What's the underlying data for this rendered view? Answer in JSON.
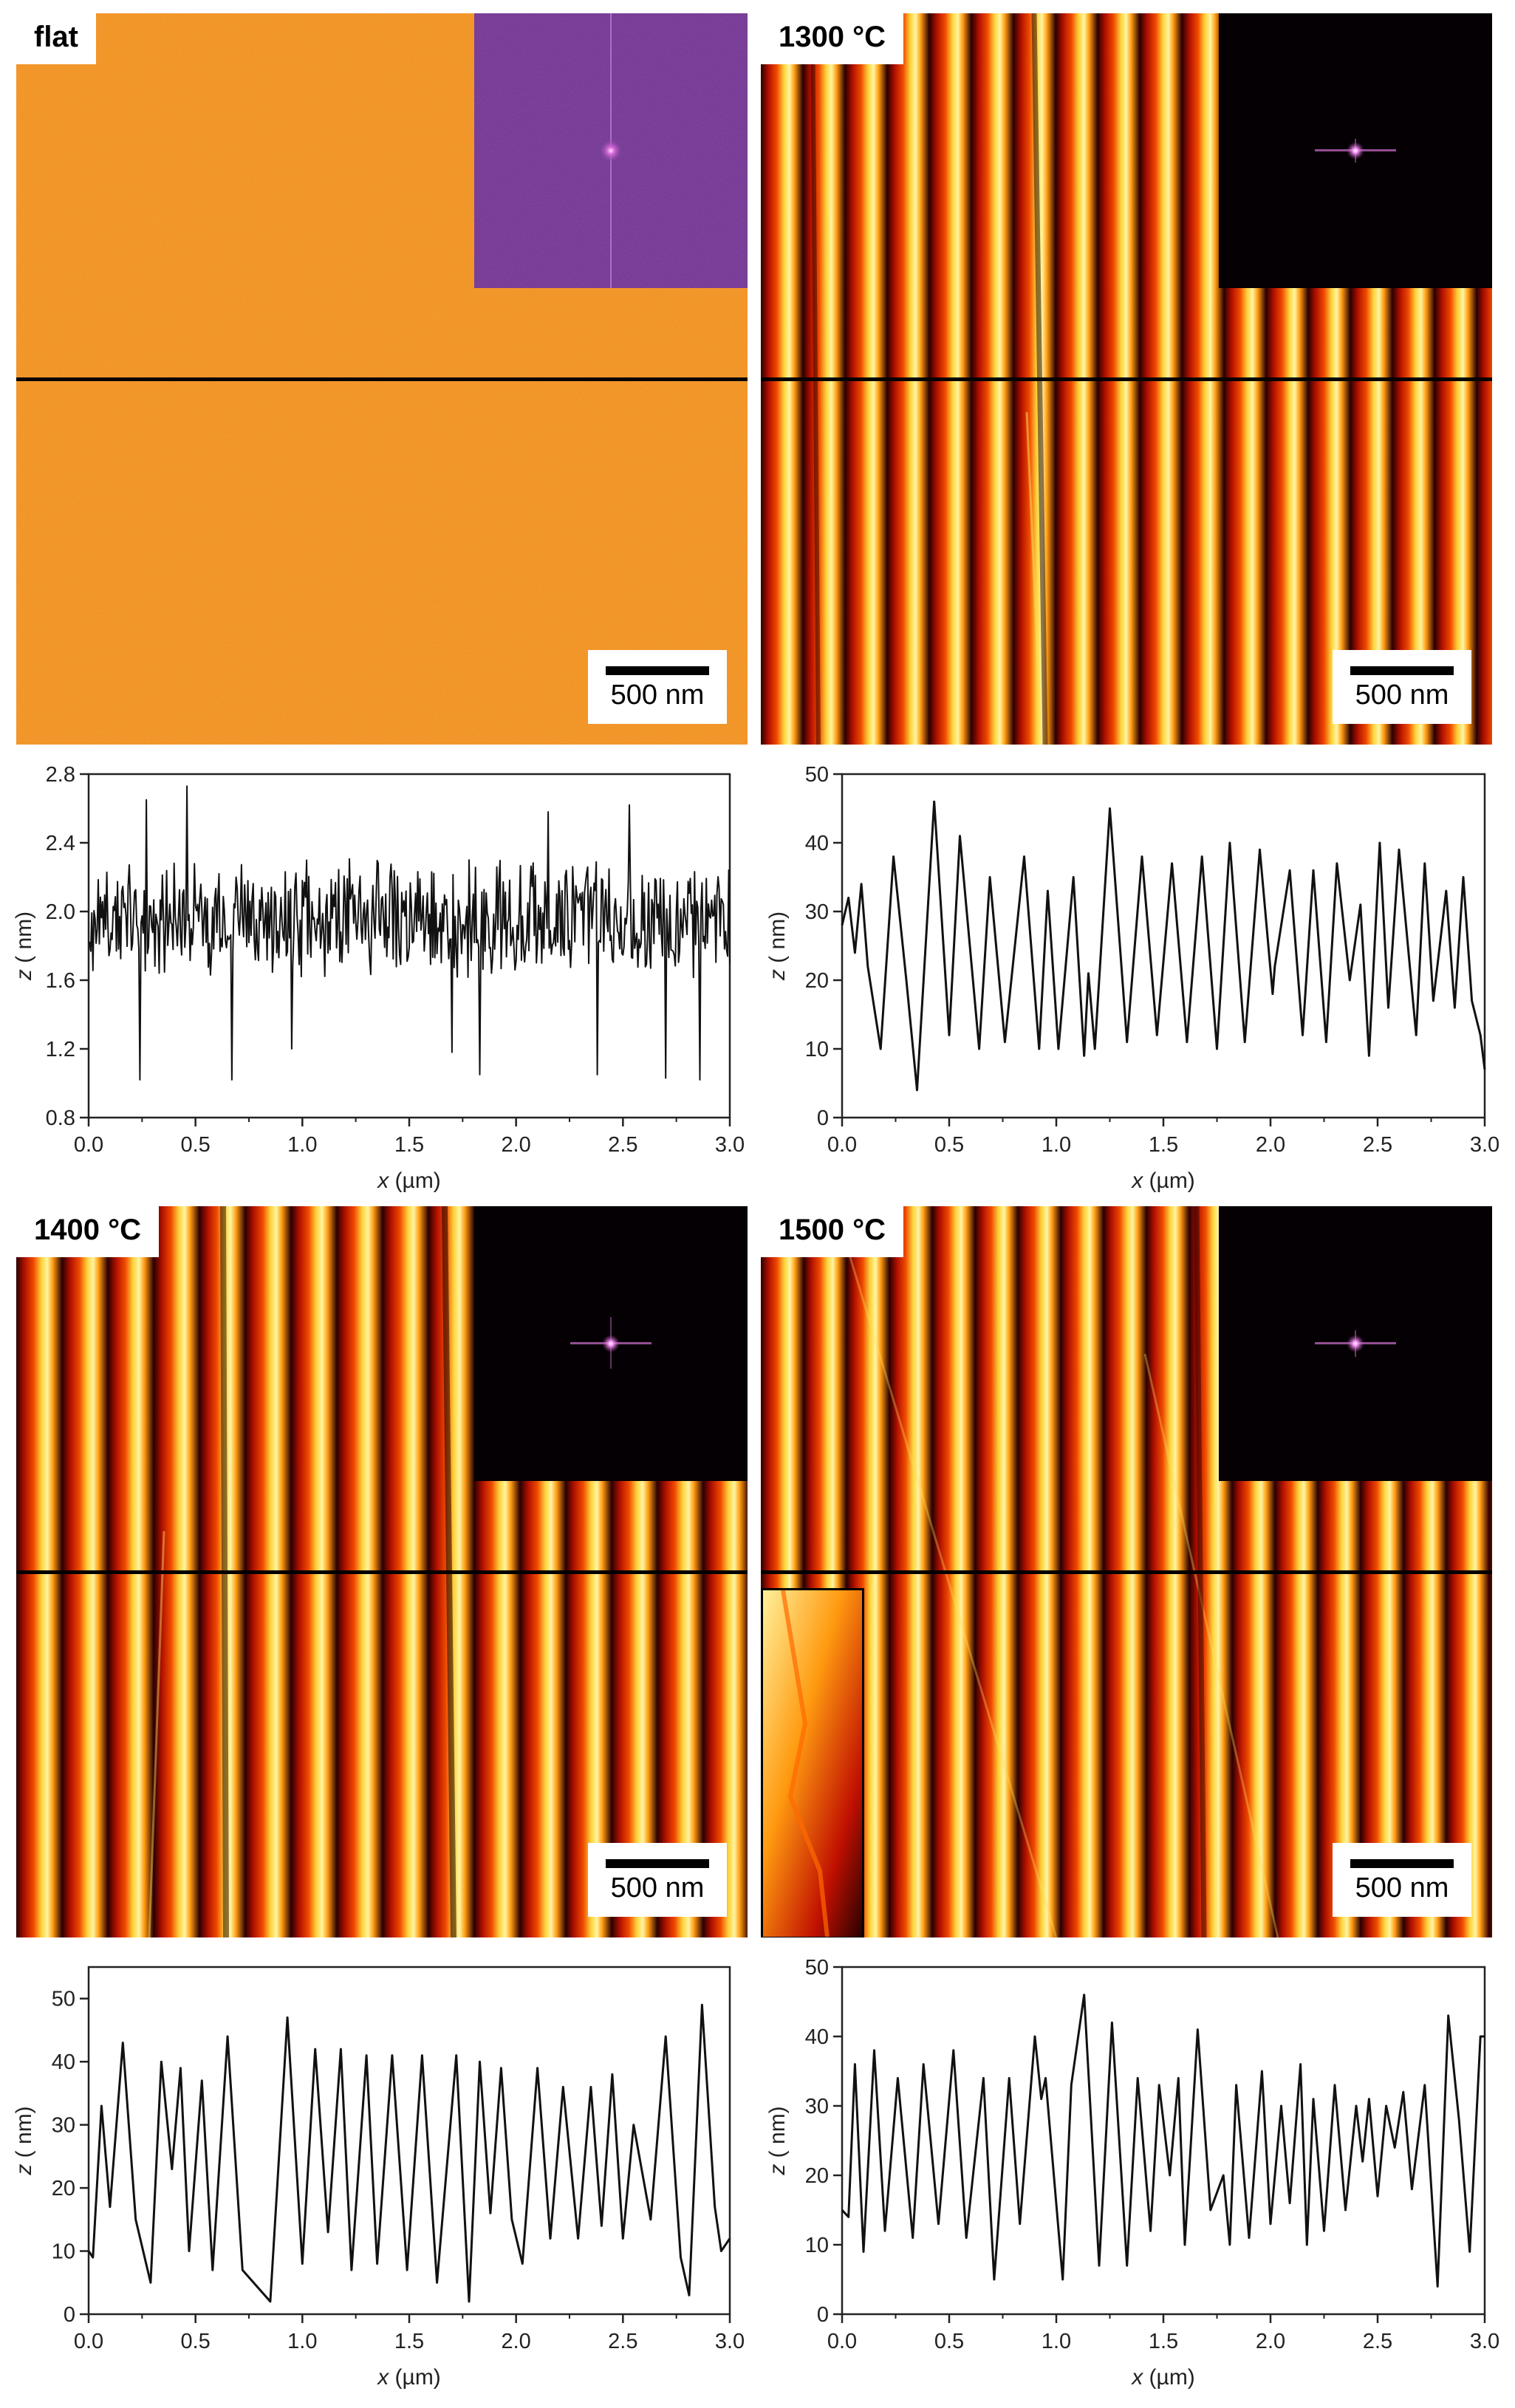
{
  "panels": [
    {
      "id": "flat",
      "label": "flat",
      "scale_bar": "500 nm",
      "image_style": "flat",
      "chart_data": {
        "type": "line",
        "xlabel_var": "x",
        "xlabel_unit": " (µm)",
        "ylabel_var": "z",
        "ylabel_unit": " ( nm)",
        "xlim": [
          0,
          3.0
        ],
        "ylim": [
          0.8,
          2.8
        ],
        "xticks": [
          "0.0",
          "0.5",
          "1.0",
          "1.5",
          "2.0",
          "2.5",
          "3.0"
        ],
        "yticks": [
          "0.8",
          "1.2",
          "1.6",
          "2.0",
          "2.4",
          "2.8"
        ],
        "profile": {
          "kind": "noise",
          "mean": 1.95,
          "amplitude": 0.28,
          "spikes": [
            [
              0.46,
              2.73
            ],
            [
              0.27,
              2.65
            ],
            [
              2.15,
              2.58
            ],
            [
              2.53,
              2.62
            ],
            [
              0.67,
              1.02
            ],
            [
              0.24,
              1.02
            ],
            [
              1.83,
              1.05
            ],
            [
              2.86,
              1.02
            ],
            [
              0.95,
              1.2
            ],
            [
              1.7,
              1.18
            ],
            [
              2.7,
              1.03
            ],
            [
              2.38,
              1.05
            ]
          ]
        }
      }
    },
    {
      "id": "t1300",
      "label": "1300 °C",
      "scale_bar": "500 nm",
      "image_style": "stripes",
      "chart_data": {
        "type": "line",
        "xlabel_var": "x",
        "xlabel_unit": " (µm)",
        "ylabel_var": "z",
        "ylabel_unit": " ( nm)",
        "xlim": [
          0,
          3.0
        ],
        "ylim": [
          0,
          50
        ],
        "xticks": [
          "0.0",
          "0.5",
          "1.0",
          "1.5",
          "2.0",
          "2.5",
          "3.0"
        ],
        "yticks": [
          "0",
          "10",
          "20",
          "30",
          "40",
          "50"
        ],
        "profile": {
          "kind": "points",
          "x": [
            0.0,
            0.03,
            0.06,
            0.09,
            0.12,
            0.18,
            0.24,
            0.3,
            0.35,
            0.43,
            0.5,
            0.55,
            0.64,
            0.69,
            0.76,
            0.85,
            0.92,
            0.96,
            1.01,
            1.08,
            1.13,
            1.15,
            1.18,
            1.25,
            1.33,
            1.4,
            1.47,
            1.54,
            1.61,
            1.68,
            1.75,
            1.81,
            1.88,
            1.95,
            2.01,
            2.02,
            2.09,
            2.15,
            2.2,
            2.26,
            2.31,
            2.37,
            2.42,
            2.46,
            2.51,
            2.55,
            2.6,
            2.68,
            2.72,
            2.76,
            2.82,
            2.86,
            2.9,
            2.94,
            2.98,
            3.0
          ],
          "y": [
            28,
            32,
            24,
            34,
            22,
            10,
            38,
            20,
            4,
            46,
            12,
            41,
            10,
            35,
            11,
            38,
            10,
            33,
            10,
            35,
            9,
            21,
            10,
            45,
            11,
            38,
            12,
            37,
            11,
            38,
            10,
            40,
            11,
            39,
            18,
            22,
            36,
            12,
            36,
            11,
            37,
            20,
            31,
            9,
            40,
            16,
            39,
            12,
            37,
            17,
            33,
            16,
            35,
            17,
            12,
            7
          ]
        }
      }
    },
    {
      "id": "t1400",
      "label": "1400 °C",
      "scale_bar": "500 nm",
      "image_style": "stripes",
      "chart_data": {
        "type": "line",
        "xlabel_var": "x",
        "xlabel_unit": " (µm)",
        "ylabel_var": "z",
        "ylabel_unit": " ( nm)",
        "xlim": [
          0,
          3.0
        ],
        "ylim": [
          0,
          55
        ],
        "xticks": [
          "0.0",
          "0.5",
          "1.0",
          "1.5",
          "2.0",
          "2.5",
          "3.0"
        ],
        "yticks": [
          "0",
          "10",
          "20",
          "30",
          "40",
          "50"
        ],
        "profile": {
          "kind": "points",
          "x": [
            0.0,
            0.02,
            0.06,
            0.1,
            0.16,
            0.22,
            0.29,
            0.34,
            0.39,
            0.43,
            0.47,
            0.53,
            0.58,
            0.65,
            0.72,
            0.85,
            0.93,
            1.0,
            1.06,
            1.12,
            1.18,
            1.23,
            1.3,
            1.35,
            1.42,
            1.49,
            1.56,
            1.63,
            1.72,
            1.78,
            1.83,
            1.88,
            1.93,
            1.98,
            2.03,
            2.1,
            2.16,
            2.22,
            2.29,
            2.35,
            2.4,
            2.45,
            2.5,
            2.55,
            2.63,
            2.7,
            2.77,
            2.81,
            2.87,
            2.93,
            2.96,
            3.0
          ],
          "y": [
            10,
            9,
            33,
            17,
            43,
            15,
            5,
            40,
            23,
            39,
            10,
            37,
            7,
            44,
            7,
            2,
            47,
            8,
            42,
            13,
            42,
            7,
            41,
            8,
            41,
            7,
            41,
            5,
            41,
            2,
            40,
            16,
            39,
            15,
            8,
            39,
            12,
            36,
            12,
            36,
            14,
            38,
            12,
            30,
            15,
            44,
            9,
            3,
            49,
            17,
            10,
            12
          ]
        }
      }
    },
    {
      "id": "t1500",
      "label": "1500 °C",
      "scale_bar": "500 nm",
      "image_style": "stripes",
      "chart_data": {
        "type": "line",
        "xlabel_var": "x",
        "xlabel_unit": " (µm)",
        "ylabel_var": "z",
        "ylabel_unit": " ( nm)",
        "xlim": [
          0,
          3.0
        ],
        "ylim": [
          0,
          50
        ],
        "xticks": [
          "0.0",
          "0.5",
          "1.0",
          "1.5",
          "2.0",
          "2.5",
          "3.0"
        ],
        "yticks": [
          "0",
          "10",
          "20",
          "30",
          "40",
          "50"
        ],
        "profile": {
          "kind": "points",
          "x": [
            0.0,
            0.03,
            0.06,
            0.1,
            0.15,
            0.2,
            0.26,
            0.33,
            0.38,
            0.45,
            0.52,
            0.58,
            0.66,
            0.71,
            0.78,
            0.83,
            0.9,
            0.93,
            0.95,
            1.03,
            1.07,
            1.13,
            1.2,
            1.26,
            1.33,
            1.38,
            1.44,
            1.48,
            1.53,
            1.57,
            1.6,
            1.66,
            1.72,
            1.78,
            1.81,
            1.84,
            1.9,
            1.96,
            2.0,
            2.05,
            2.09,
            2.14,
            2.17,
            2.2,
            2.25,
            2.3,
            2.35,
            2.4,
            2.43,
            2.46,
            2.5,
            2.54,
            2.58,
            2.62,
            2.66,
            2.72,
            2.78,
            2.83,
            2.88,
            2.93,
            2.98,
            3.0
          ],
          "y": [
            15,
            14,
            36,
            9,
            38,
            12,
            34,
            11,
            36,
            13,
            38,
            11,
            34,
            5,
            34,
            13,
            40,
            31,
            34,
            5,
            33,
            46,
            7,
            42,
            7,
            34,
            12,
            33,
            20,
            34,
            10,
            41,
            15,
            20,
            10,
            33,
            11,
            35,
            13,
            30,
            16,
            36,
            10,
            31,
            12,
            33,
            15,
            30,
            22,
            31,
            17,
            30,
            24,
            32,
            18,
            33,
            4,
            43,
            28,
            9,
            40,
            40
          ]
        }
      }
    }
  ]
}
